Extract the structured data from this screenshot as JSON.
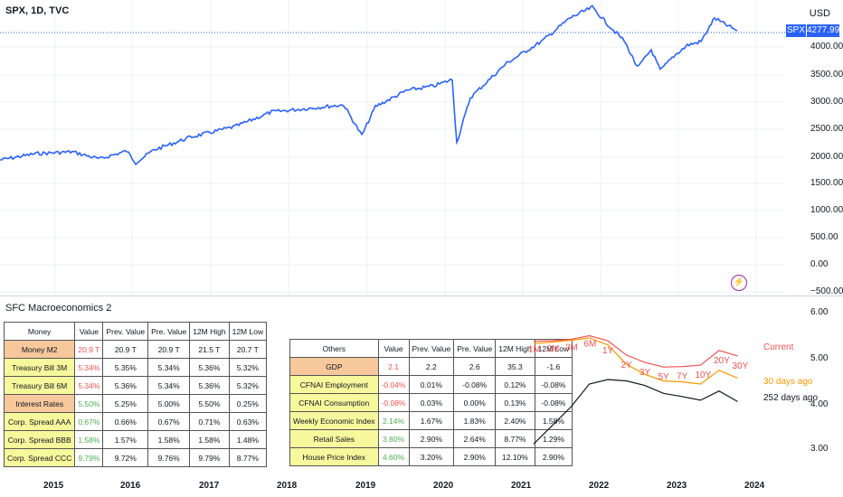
{
  "header": {
    "symbol_title": "SPX, 1D, TVC",
    "currency": "USD"
  },
  "price_axis": {
    "badge_symbol": "SPX",
    "badge_price": "4277.99",
    "ticks": [
      "4000.00",
      "3500.00",
      "3000.00",
      "2500.00",
      "2000.00",
      "1500.00",
      "1000.00",
      "500.00",
      "0.00",
      "−500.00"
    ]
  },
  "indicator": {
    "title": "SFC Macroeconomics 2",
    "axis_ticks": [
      "6.00",
      "5.00",
      "4.00",
      "3.00"
    ]
  },
  "time_axis": [
    "2015",
    "2016",
    "2017",
    "2018",
    "2019",
    "2020",
    "2021",
    "2022",
    "2023",
    "2024"
  ],
  "icons": {
    "flash": "lightning-icon"
  },
  "colors": {
    "price_line": "#2962ff",
    "current": "#ef5350",
    "days30": "#ff9800",
    "days252": "#131722"
  },
  "money_table": {
    "headers": [
      "Money",
      "Value",
      "Prev. Value",
      "Pre. Value",
      "12M High",
      "12M Low"
    ],
    "rows": [
      {
        "name": "Money M2",
        "value": "20.9 T",
        "prev": "20.9 T",
        "pre": "20.9 T",
        "high": "21.5 T",
        "low": "20.7 T",
        "name_style": "orange",
        "value_style": "red"
      },
      {
        "name": "Treasury Bill 3M",
        "value": "5.34%",
        "prev": "5.35%",
        "pre": "5.34%",
        "high": "5.36%",
        "low": "5.32%",
        "name_style": "yellow",
        "value_style": "red"
      },
      {
        "name": "Treasury Bill 6M",
        "value": "5.34%",
        "prev": "5.36%",
        "pre": "5.34%",
        "high": "5.36%",
        "low": "5.32%",
        "name_style": "yellow",
        "value_style": "red"
      },
      {
        "name": "Interest Rates",
        "value": "5.50%",
        "prev": "5.25%",
        "pre": "5.00%",
        "high": "5.50%",
        "low": "0.25%",
        "name_style": "orange",
        "value_style": "green"
      },
      {
        "name": "Corp. Spread AAA",
        "value": "0.67%",
        "prev": "0.66%",
        "pre": "0.67%",
        "high": "0.71%",
        "low": "0.63%",
        "name_style": "yellow",
        "value_style": "green"
      },
      {
        "name": "Corp. Spread BBB",
        "value": "1.58%",
        "prev": "1.57%",
        "pre": "1.58%",
        "high": "1.58%",
        "low": "1.48%",
        "name_style": "yellow",
        "value_style": "green"
      },
      {
        "name": "Corp. Spread CCC",
        "value": "9.79%",
        "prev": "9.72%",
        "pre": "9.76%",
        "high": "9.79%",
        "low": "8.77%",
        "name_style": "yellow",
        "value_style": "green"
      }
    ]
  },
  "others_table": {
    "headers": [
      "Others",
      "Value",
      "Prev. Value",
      "Pre. Value",
      "12M High",
      "12M Low"
    ],
    "rows": [
      {
        "name": "GDP",
        "value": "2.1",
        "prev": "2.2",
        "pre": "2.6",
        "high": "35.3",
        "low": "-1.6",
        "name_style": "orange",
        "value_style": "red"
      },
      {
        "name": "CFNAI Employment",
        "value": "-0.04%",
        "prev": "0.01%",
        "pre": "-0.08%",
        "high": "0.12%",
        "low": "-0.08%",
        "name_style": "yellow",
        "value_style": "red"
      },
      {
        "name": "CFNAI Consumption",
        "value": "-0.08%",
        "prev": "0.03%",
        "pre": "0.00%",
        "high": "0.13%",
        "low": "-0.08%",
        "name_style": "yellow",
        "value_style": "red"
      },
      {
        "name": "Weekly Economic Index",
        "value": "2.14%",
        "prev": "1.67%",
        "pre": "1.83%",
        "high": "2.40%",
        "low": "1.58%",
        "name_style": "yellow",
        "value_style": "green"
      },
      {
        "name": "Retail Sales",
        "value": "3.80%",
        "prev": "2.90%",
        "pre": "2.64%",
        "high": "8.77%",
        "low": "1.29%",
        "name_style": "yellow",
        "value_style": "green"
      },
      {
        "name": "House Price Index",
        "value": "4.60%",
        "prev": "3.20%",
        "pre": "2.90%",
        "high": "12.10%",
        "low": "2.90%",
        "name_style": "yellow",
        "value_style": "green"
      }
    ]
  },
  "yield_curve": {
    "maturities": [
      "1M",
      "2M",
      "3M",
      "6M",
      "1Y",
      "2Y",
      "3Y",
      "5Y",
      "7Y",
      "10Y",
      "20Y",
      "30Y"
    ],
    "series": [
      {
        "name": "Current",
        "values": [
          5.38,
          5.39,
          5.42,
          5.5,
          5.39,
          5.08,
          4.92,
          4.82,
          4.83,
          4.86,
          5.18,
          5.06
        ]
      },
      {
        "name": "30 days ago",
        "values": [
          5.33,
          5.36,
          5.4,
          5.45,
          5.3,
          4.88,
          4.66,
          4.52,
          4.5,
          4.45,
          4.75,
          4.58
        ]
      },
      {
        "name": "252 days ago",
        "values": [
          3.15,
          3.55,
          3.95,
          4.45,
          4.55,
          4.52,
          4.42,
          4.25,
          4.18,
          4.1,
          4.3,
          4.07
        ]
      }
    ]
  }
}
